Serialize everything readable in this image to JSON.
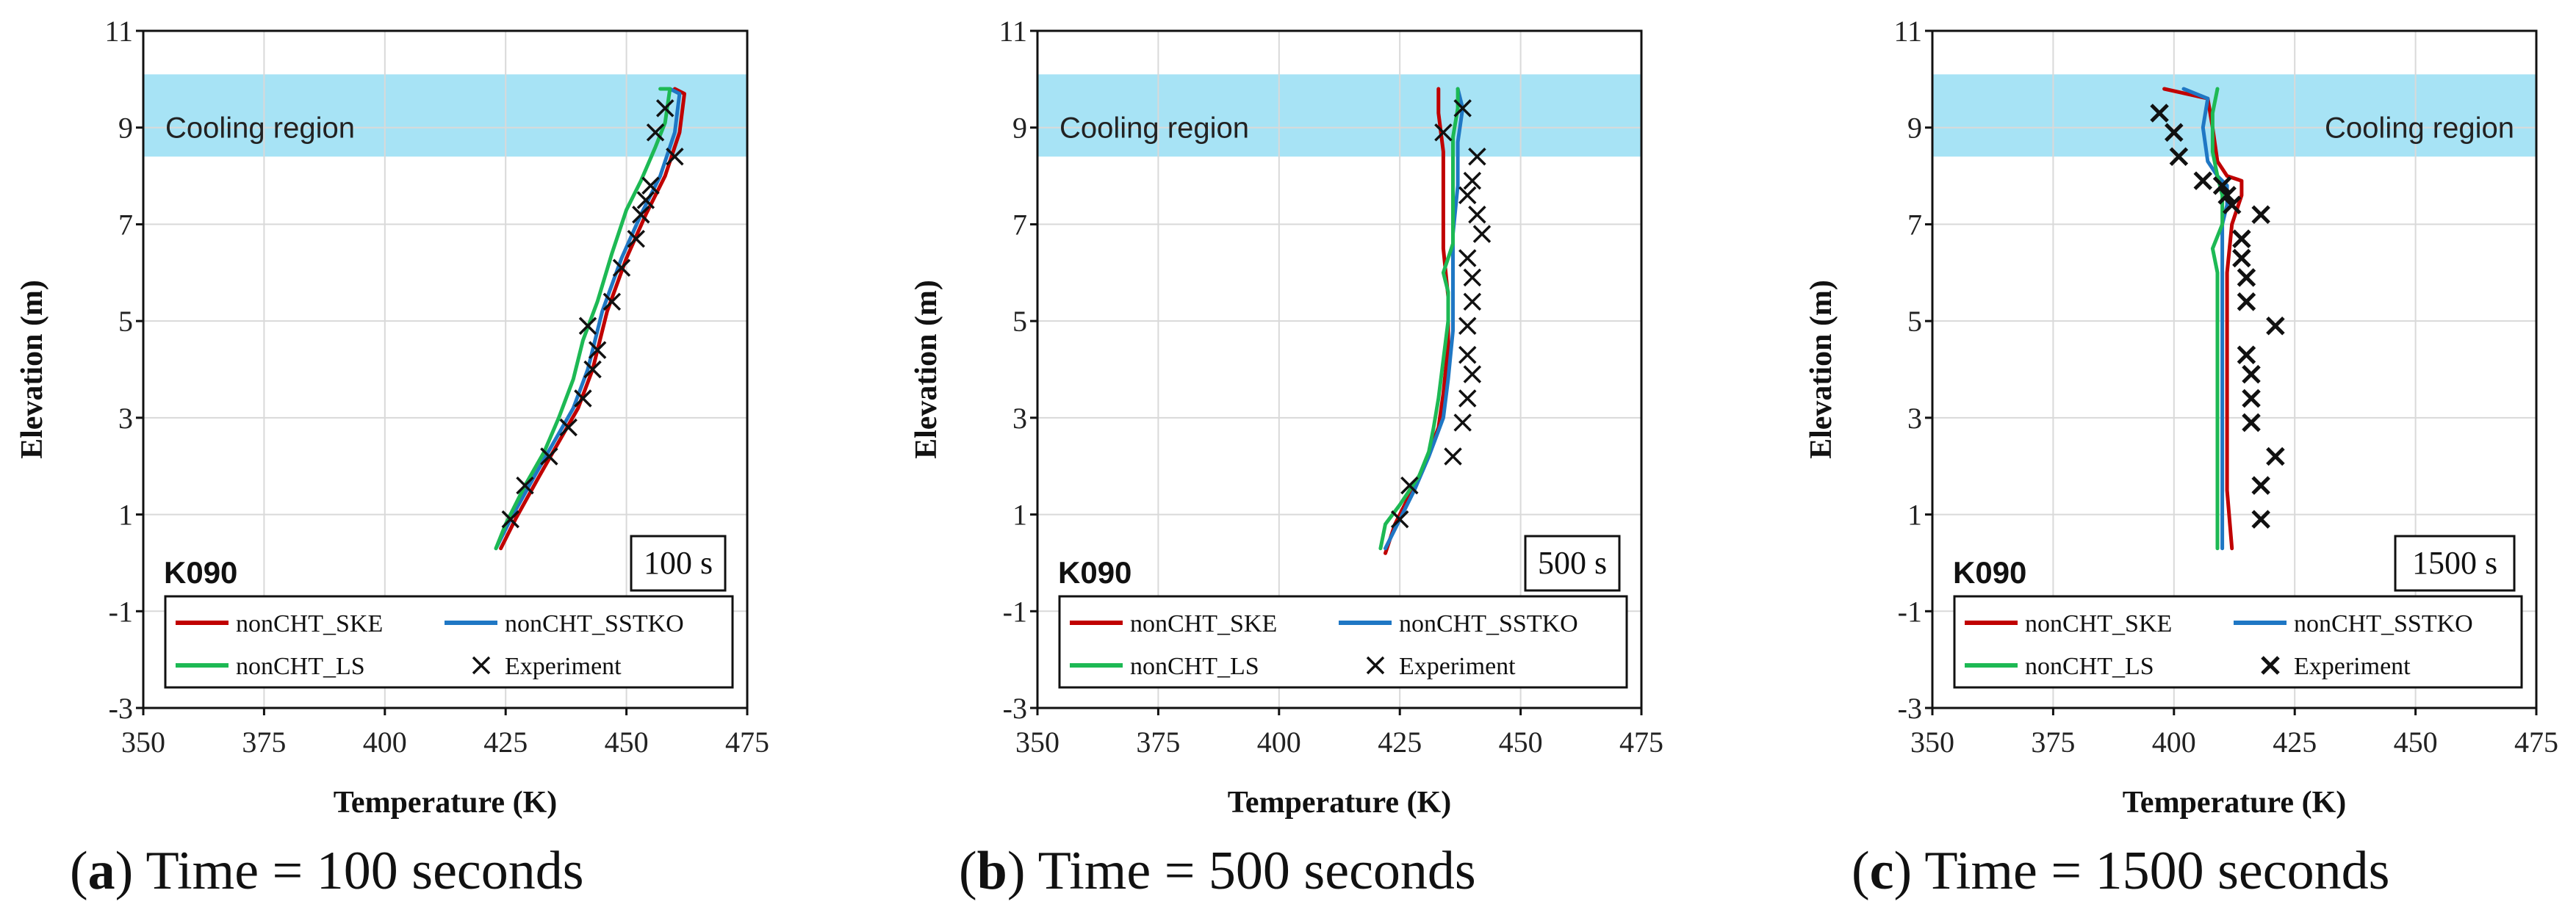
{
  "figure": {
    "captions": [
      {
        "letter": "a",
        "text": " Time = 100 seconds"
      },
      {
        "letter": "b",
        "text": " Time = 500 seconds"
      },
      {
        "letter": "c",
        "text": " Time = 1500 seconds"
      }
    ]
  },
  "colors": {
    "SKE": "#c00000",
    "SSTKO": "#1f77c4",
    "LS": "#1db954",
    "Experiment": "#111111",
    "cooling": "#a7e3f5",
    "grid": "#d9d9d9"
  },
  "chart_data": [
    {
      "type": "line",
      "panel": "a",
      "xlabel": "Temperature  (K)",
      "ylabel": "Elevation  (m)",
      "xlim": [
        350,
        475
      ],
      "ylim": [
        -3,
        11
      ],
      "xticks": [
        "350",
        "375",
        "400",
        "425",
        "450",
        "475"
      ],
      "yticks": [
        "11",
        "9",
        "7",
        "5",
        "3",
        "1",
        "-1",
        "-3"
      ],
      "region": {
        "label": "Cooling region",
        "y_range": [
          8.4,
          10.1
        ],
        "label_position": "left"
      },
      "case_label": "K090",
      "time_label": "100 s",
      "legend": [
        "nonCHT_SKE",
        "nonCHT_SSTKO",
        "nonCHT_LS",
        "Experiment"
      ],
      "series": [
        {
          "name": "nonCHT_SKE",
          "key": "SKE",
          "points": [
            [
              424,
              0.3
            ],
            [
              427,
              0.9
            ],
            [
              432,
              1.8
            ],
            [
              436,
              2.5
            ],
            [
              440,
              3.2
            ],
            [
              443,
              4.0
            ],
            [
              446,
              5.2
            ],
            [
              450,
              6.3
            ],
            [
              454,
              7.2
            ],
            [
              458,
              8.0
            ],
            [
              461,
              8.9
            ],
            [
              462,
              9.7
            ],
            [
              460,
              9.8
            ]
          ]
        },
        {
          "name": "nonCHT_SSTKO",
          "key": "SSTKO",
          "points": [
            [
              423,
              0.3
            ],
            [
              426,
              0.9
            ],
            [
              431,
              1.8
            ],
            [
              435,
              2.5
            ],
            [
              439,
              3.2
            ],
            [
              442,
              4.0
            ],
            [
              445,
              5.2
            ],
            [
              449,
              6.3
            ],
            [
              453,
              7.2
            ],
            [
              457,
              8.0
            ],
            [
              460,
              8.9
            ],
            [
              461,
              9.7
            ],
            [
              459,
              9.8
            ]
          ]
        },
        {
          "name": "nonCHT_LS",
          "key": "LS",
          "points": [
            [
              423,
              0.3
            ],
            [
              425,
              0.8
            ],
            [
              429,
              1.6
            ],
            [
              433,
              2.3
            ],
            [
              436,
              3.0
            ],
            [
              439,
              3.8
            ],
            [
              441,
              4.6
            ],
            [
              444,
              5.4
            ],
            [
              447,
              6.4
            ],
            [
              450,
              7.3
            ],
            [
              453,
              7.9
            ],
            [
              456,
              8.6
            ],
            [
              458,
              9.1
            ],
            [
              459,
              9.8
            ],
            [
              457,
              9.8
            ]
          ]
        }
      ],
      "experiment": [
        [
          426,
          0.9
        ],
        [
          429,
          1.6
        ],
        [
          434,
          2.2
        ],
        [
          438,
          2.8
        ],
        [
          441,
          3.4
        ],
        [
          443,
          4.0
        ],
        [
          444,
          4.4
        ],
        [
          442,
          4.9
        ],
        [
          447,
          5.4
        ],
        [
          449,
          6.1
        ],
        [
          452,
          6.7
        ],
        [
          453,
          7.2
        ],
        [
          454,
          7.5
        ],
        [
          455,
          7.8
        ],
        [
          460,
          8.4
        ],
        [
          456,
          8.9
        ],
        [
          458,
          9.4
        ]
      ]
    },
    {
      "type": "line",
      "panel": "b",
      "xlabel": "Temperature  (K)",
      "ylabel": "Elevation  (m)",
      "xlim": [
        350,
        475
      ],
      "ylim": [
        -3,
        11
      ],
      "xticks": [
        "350",
        "375",
        "400",
        "425",
        "450",
        "475"
      ],
      "yticks": [
        "11",
        "9",
        "7",
        "5",
        "3",
        "1",
        "-1",
        "-3"
      ],
      "region": {
        "label": "Cooling region",
        "y_range": [
          8.4,
          10.1
        ],
        "label_position": "left"
      },
      "case_label": "K090",
      "time_label": "500 s",
      "legend": [
        "nonCHT_SKE",
        "nonCHT_SSTKO",
        "nonCHT_LS",
        "Experiment"
      ],
      "series": [
        {
          "name": "nonCHT_SKE",
          "key": "SKE",
          "points": [
            [
              422,
              0.2
            ],
            [
              424,
              0.8
            ],
            [
              427,
              1.4
            ],
            [
              430,
              2.0
            ],
            [
              433,
              2.8
            ],
            [
              434,
              3.5
            ],
            [
              435,
              4.5
            ],
            [
              435,
              5.5
            ],
            [
              434,
              6.5
            ],
            [
              434,
              7.5
            ],
            [
              434,
              8.5
            ],
            [
              433,
              9.3
            ],
            [
              433,
              9.8
            ]
          ]
        },
        {
          "name": "nonCHT_SSTKO",
          "key": "SSTKO",
          "points": [
            [
              422,
              0.3
            ],
            [
              425,
              0.9
            ],
            [
              428,
              1.5
            ],
            [
              431,
              2.2
            ],
            [
              434,
              3.0
            ],
            [
              435,
              3.8
            ],
            [
              436,
              4.8
            ],
            [
              436,
              5.8
            ],
            [
              436,
              6.8
            ],
            [
              437,
              7.8
            ],
            [
              437,
              8.7
            ],
            [
              438,
              9.4
            ],
            [
              437,
              9.8
            ]
          ]
        },
        {
          "name": "nonCHT_LS",
          "key": "LS",
          "points": [
            [
              421,
              0.3
            ],
            [
              422,
              0.8
            ],
            [
              425,
              1.2
            ],
            [
              429,
              1.8
            ],
            [
              431,
              2.3
            ],
            [
              432,
              2.8
            ],
            [
              433,
              3.4
            ],
            [
              434,
              4.2
            ],
            [
              435,
              5.0
            ],
            [
              435,
              5.6
            ],
            [
              434,
              6.0
            ],
            [
              436,
              6.6
            ],
            [
              436,
              7.2
            ],
            [
              436,
              8.0
            ],
            [
              436,
              8.8
            ],
            [
              437,
              9.4
            ],
            [
              437,
              9.8
            ]
          ]
        }
      ],
      "experiment": [
        [
          425,
          0.9
        ],
        [
          427,
          1.6
        ],
        [
          436,
          2.2
        ],
        [
          438,
          2.9
        ],
        [
          439,
          3.4
        ],
        [
          440,
          3.9
        ],
        [
          439,
          4.3
        ],
        [
          439,
          4.9
        ],
        [
          440,
          5.4
        ],
        [
          440,
          5.9
        ],
        [
          439,
          6.3
        ],
        [
          442,
          6.8
        ],
        [
          441,
          7.2
        ],
        [
          439,
          7.6
        ],
        [
          440,
          7.9
        ],
        [
          441,
          8.4
        ],
        [
          434,
          8.9
        ],
        [
          438,
          9.4
        ]
      ]
    },
    {
      "type": "line",
      "panel": "c",
      "xlabel": "Temperature  (K)",
      "ylabel": "Elevation  (m)",
      "xlim": [
        350,
        475
      ],
      "ylim": [
        -3,
        11
      ],
      "xticks": [
        "350",
        "375",
        "400",
        "425",
        "450",
        "475"
      ],
      "yticks": [
        "11",
        "9",
        "7",
        "5",
        "3",
        "1",
        "-1",
        "-3"
      ],
      "region": {
        "label": "Cooling region",
        "y_range": [
          8.4,
          10.1
        ],
        "label_position": "right"
      },
      "case_label": "K090",
      "time_label": "1500 s",
      "legend": [
        "nonCHT_SKE",
        "nonCHT_SSTKO",
        "nonCHT_LS",
        "Experiment"
      ],
      "series": [
        {
          "name": "nonCHT_SKE",
          "key": "SKE",
          "points": [
            [
              412,
              0.3
            ],
            [
              411,
              1.5
            ],
            [
              411,
              3.0
            ],
            [
              411,
              4.5
            ],
            [
              411,
              6.0
            ],
            [
              412,
              7.0
            ],
            [
              413,
              7.3
            ],
            [
              414,
              7.6
            ],
            [
              414,
              7.9
            ],
            [
              411,
              8.0
            ],
            [
              409,
              8.3
            ],
            [
              408,
              9.0
            ],
            [
              407,
              9.6
            ],
            [
              398,
              9.8
            ]
          ]
        },
        {
          "name": "nonCHT_SSTKO",
          "key": "SSTKO",
          "points": [
            [
              410,
              0.3
            ],
            [
              410,
              1.5
            ],
            [
              410,
              3.0
            ],
            [
              410,
              4.5
            ],
            [
              410,
              6.0
            ],
            [
              410,
              7.0
            ],
            [
              411,
              7.4
            ],
            [
              411,
              7.8
            ],
            [
              409,
              8.0
            ],
            [
              407,
              8.3
            ],
            [
              406,
              9.0
            ],
            [
              407,
              9.6
            ],
            [
              402,
              9.8
            ]
          ]
        },
        {
          "name": "nonCHT_LS",
          "key": "LS",
          "points": [
            [
              409,
              0.3
            ],
            [
              409,
              1.5
            ],
            [
              409,
              3.0
            ],
            [
              409,
              4.5
            ],
            [
              409,
              6.0
            ],
            [
              408,
              6.5
            ],
            [
              410,
              7.0
            ],
            [
              410,
              7.6
            ],
            [
              409,
              8.0
            ],
            [
              408,
              8.5
            ],
            [
              408,
              9.3
            ],
            [
              409,
              9.8
            ]
          ]
        }
      ],
      "experiment": [
        [
          418,
          0.9
        ],
        [
          418,
          1.6
        ],
        [
          421,
          2.2
        ],
        [
          416,
          2.9
        ],
        [
          416,
          3.4
        ],
        [
          416,
          3.9
        ],
        [
          415,
          4.3
        ],
        [
          421,
          4.9
        ],
        [
          415,
          5.4
        ],
        [
          415,
          5.9
        ],
        [
          414,
          6.3
        ],
        [
          414,
          6.7
        ],
        [
          418,
          7.2
        ],
        [
          412,
          7.4
        ],
        [
          411,
          7.6
        ],
        [
          410,
          7.8
        ],
        [
          406,
          7.9
        ],
        [
          401,
          8.4
        ],
        [
          400,
          8.9
        ],
        [
          397,
          9.3
        ]
      ]
    }
  ]
}
